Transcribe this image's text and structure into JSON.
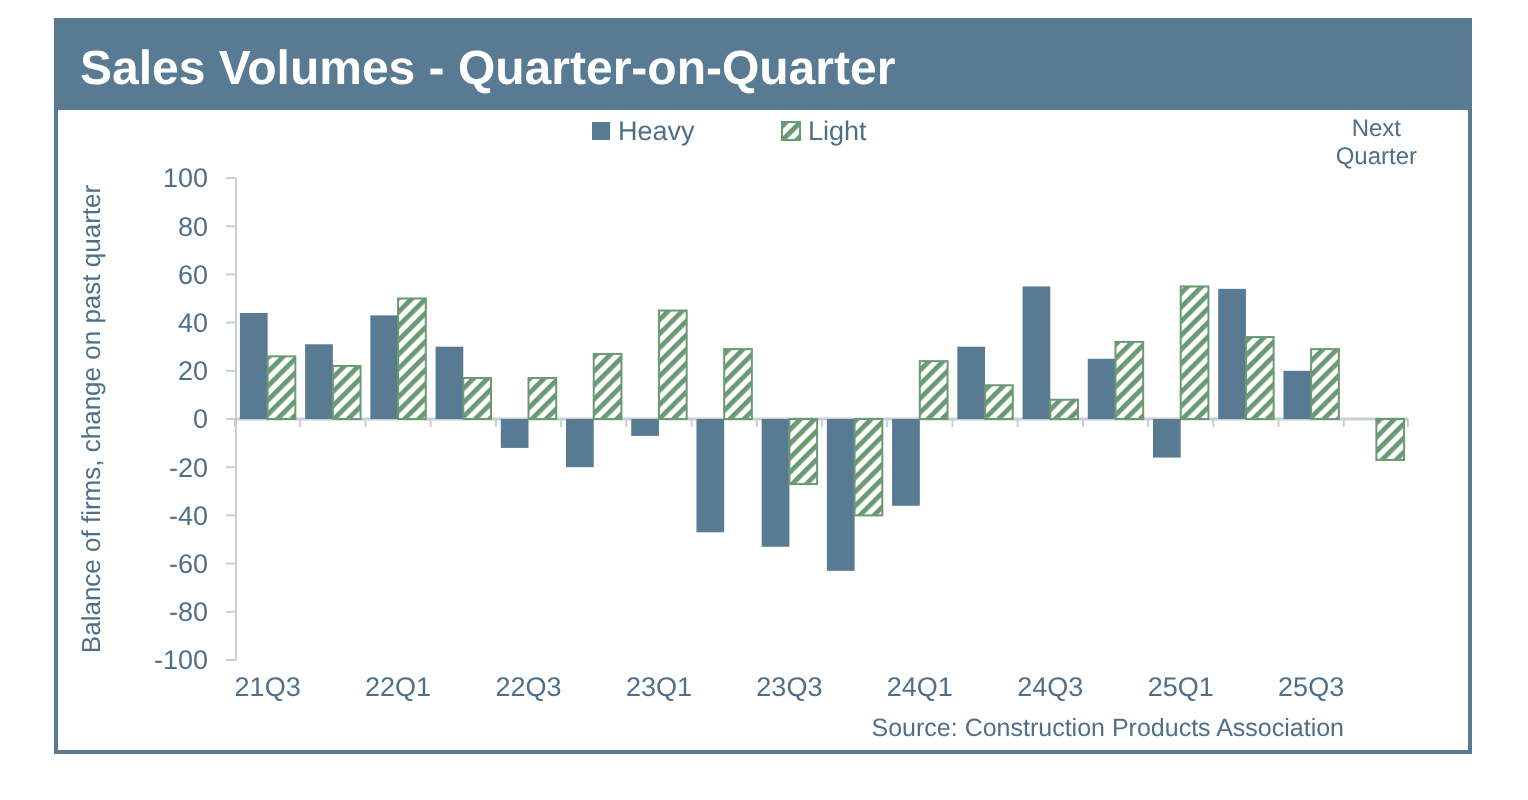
{
  "chart_data": {
    "type": "bar",
    "title": "Sales Volumes - Quarter-on-Quarter",
    "ylabel": "Balance of firms, change on past quarter",
    "categories": [
      "21Q3",
      null,
      "22Q1",
      null,
      "22Q3",
      null,
      "23Q1",
      null,
      "23Q3",
      null,
      "24Q1",
      null,
      "24Q3",
      null,
      "25Q1",
      null,
      "25Q3",
      null
    ],
    "series": [
      {
        "name": "Heavy",
        "color": "#587a93",
        "values": [
          44,
          31,
          43,
          30,
          -12,
          -20,
          -7,
          -47,
          -53,
          -63,
          -36,
          30,
          55,
          25,
          -16,
          54,
          20,
          null
        ]
      },
      {
        "name": "Light",
        "color": "#6a9a72",
        "values": [
          26,
          22,
          50,
          17,
          17,
          27,
          45,
          29,
          -27,
          -40,
          24,
          14,
          8,
          32,
          55,
          34,
          29,
          -17
        ]
      }
    ],
    "ylim": [
      -100,
      100
    ],
    "yticks": [
      -100,
      -80,
      -60,
      -40,
      -20,
      0,
      20,
      40,
      60,
      80,
      100
    ],
    "legend": "top",
    "annotations": [
      "Next Quarter",
      "Source: Construction Products Association"
    ]
  }
}
